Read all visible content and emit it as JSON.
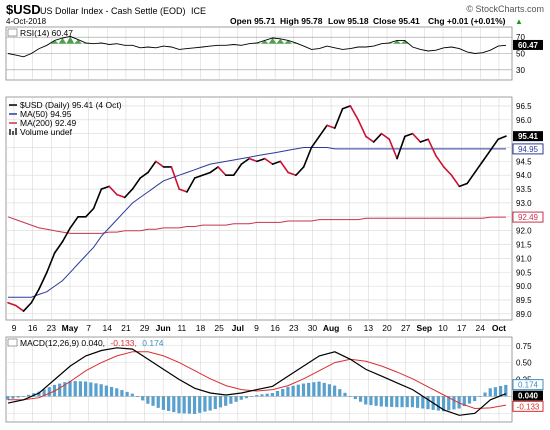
{
  "header": {
    "symbol": "$USD",
    "name": "US Dollar Index - Cash Settle (EOD)",
    "exchange": "ICE",
    "watermark": "© StockCharts.com",
    "date": "4-Oct-2018",
    "open": "Open 95.71",
    "high": "High 95.78",
    "low": "Low 95.18",
    "close": "Close 95.41",
    "chg": "Chg +0.01 (+0.01%)",
    "chg_arrow": "▲"
  },
  "colors": {
    "price": "#000000",
    "price_down": "#cc1133",
    "ma50": "#2a3a9a",
    "ma200": "#c8334f",
    "rsi": "#000000",
    "rsi_fill": "#2f8f2f",
    "macd": "#000000",
    "signal": "#d93030",
    "hist": "#3b8fc4",
    "grid": "#d8d8d8",
    "tag_price_bg": "#000000",
    "tag_ma50_bg": "#2a3a9a",
    "tag_ma200_bg": "#c8334f",
    "tag_rsi_bg": "#000000",
    "tag_macd_bg": "#000000",
    "tag_signal_bg": "#d93030"
  },
  "rsi_panel": {
    "label": "RSI(14) 60.47",
    "ticks": [
      "70",
      "60.47",
      "50",
      "30"
    ],
    "current_tag": "60.47"
  },
  "price_panel": {
    "legend": [
      {
        "text": "$USD (Daily) 95.41 (4 Oct)",
        "icon": "price-line-icon"
      },
      {
        "text": "MA(50) 94.95",
        "icon": "ma50-line-icon"
      },
      {
        "text": "MA(200) 92.49",
        "icon": "ma200-line-icon"
      },
      {
        "text": "Volume undef",
        "icon": "volume-bar-icon"
      }
    ],
    "ticks": [
      "96.5",
      "96.0",
      "95.5",
      "95.0",
      "94.5",
      "94.0",
      "93.5",
      "93.0",
      "92.5",
      "92.0",
      "91.5",
      "91.0",
      "90.5",
      "90.0",
      "89.5",
      "89.0"
    ],
    "tags": {
      "price": "95.41",
      "ma50": "94.95",
      "ma200": "92.49"
    }
  },
  "x_axis": {
    "labels": [
      {
        "text": "9",
        "bold": false
      },
      {
        "text": "16",
        "bold": false
      },
      {
        "text": "23",
        "bold": false
      },
      {
        "text": "May",
        "bold": true
      },
      {
        "text": "7",
        "bold": false
      },
      {
        "text": "14",
        "bold": false
      },
      {
        "text": "21",
        "bold": false
      },
      {
        "text": "29",
        "bold": false
      },
      {
        "text": "Jun",
        "bold": true
      },
      {
        "text": "11",
        "bold": false
      },
      {
        "text": "18",
        "bold": false
      },
      {
        "text": "25",
        "bold": false
      },
      {
        "text": "Jul",
        "bold": true
      },
      {
        "text": "9",
        "bold": false
      },
      {
        "text": "16",
        "bold": false
      },
      {
        "text": "23",
        "bold": false
      },
      {
        "text": "30",
        "bold": false
      },
      {
        "text": "Aug",
        "bold": true
      },
      {
        "text": "6",
        "bold": false
      },
      {
        "text": "13",
        "bold": false
      },
      {
        "text": "20",
        "bold": false
      },
      {
        "text": "27",
        "bold": false
      },
      {
        "text": "Sep",
        "bold": true
      },
      {
        "text": "10",
        "bold": false
      },
      {
        "text": "17",
        "bold": false
      },
      {
        "text": "24",
        "bold": false
      },
      {
        "text": "Oct",
        "bold": true
      }
    ]
  },
  "macd_panel": {
    "label_prefix": "MACD(12,26,9) 0.040,",
    "label_signal": "-0.133,",
    "label_hist": "0.174",
    "ticks": [
      "0.75",
      "0.50",
      "0.25",
      "0.00",
      "-0.25"
    ],
    "tags": {
      "hist": "0.174",
      "macd": "0.040",
      "signal": "-0.133"
    }
  },
  "chart_data": [
    {
      "type": "line",
      "title": "RSI(14)",
      "ylim": [
        20,
        80
      ],
      "reference_lines": [
        70,
        30
      ],
      "grid": true,
      "x": [
        0,
        2,
        4,
        6,
        8,
        10,
        12,
        14,
        16,
        18,
        20,
        22,
        24,
        26,
        28,
        30,
        32,
        34,
        36,
        38,
        40,
        42,
        44,
        46,
        48,
        50,
        52,
        54,
        56,
        58,
        60,
        62,
        64,
        66,
        68,
        70,
        72,
        74,
        76,
        78,
        80,
        82,
        84,
        86,
        88,
        90,
        92,
        94,
        96,
        98,
        100,
        102,
        104,
        106,
        108,
        110,
        112,
        114,
        116,
        118,
        120,
        122,
        124,
        126,
        128
      ],
      "series": [
        {
          "name": "RSI(14)",
          "values": [
            50,
            48,
            46,
            50,
            56,
            60,
            66,
            69,
            71,
            67,
            63,
            62,
            63,
            61,
            62,
            60,
            60,
            57,
            58,
            57,
            59,
            58,
            55,
            56,
            57,
            58,
            59,
            60,
            60,
            61,
            60,
            62,
            63,
            66,
            69,
            68,
            66,
            63,
            59,
            55,
            56,
            59,
            57,
            55,
            56,
            58,
            58,
            59,
            62,
            63,
            66,
            66,
            58,
            55,
            53,
            54,
            57,
            58,
            56,
            52,
            50,
            51,
            54,
            59,
            60
          ]
        }
      ]
    },
    {
      "type": "line",
      "title": "$USD (Daily)",
      "ylim": [
        89.0,
        96.7
      ],
      "grid": true,
      "x": [
        0,
        2,
        4,
        6,
        8,
        10,
        12,
        14,
        16,
        18,
        20,
        22,
        24,
        26,
        28,
        30,
        32,
        34,
        36,
        38,
        40,
        42,
        44,
        46,
        48,
        50,
        52,
        54,
        56,
        58,
        60,
        62,
        64,
        66,
        68,
        70,
        72,
        74,
        76,
        78,
        80,
        82,
        84,
        86,
        88,
        90,
        92,
        94,
        96,
        98,
        100,
        102,
        104,
        106,
        108,
        110,
        112,
        114,
        116,
        118,
        120,
        122,
        124,
        126,
        128
      ],
      "series": [
        {
          "name": "$USD (Daily) 95.41 (4 Oct)",
          "values": [
            89.4,
            89.3,
            89.1,
            89.4,
            89.9,
            90.5,
            91.2,
            91.6,
            92.1,
            92.5,
            92.5,
            92.8,
            93.5,
            93.6,
            93.3,
            93.2,
            93.5,
            93.9,
            94.1,
            94.5,
            94.3,
            94.3,
            93.5,
            93.4,
            93.9,
            94.0,
            94.1,
            94.3,
            94.0,
            94.0,
            94.4,
            94.6,
            94.5,
            94.6,
            94.4,
            94.5,
            94.1,
            94.0,
            94.3,
            95.0,
            95.4,
            95.8,
            95.7,
            96.4,
            96.5,
            96.0,
            95.4,
            95.2,
            95.5,
            95.3,
            94.6,
            95.4,
            95.5,
            95.2,
            95.3,
            94.7,
            94.3,
            94.0,
            93.6,
            93.7,
            94.1,
            94.5,
            94.9,
            95.3,
            95.41
          ]
        },
        {
          "name": "MA(50) 94.95",
          "values": [
            89.6,
            89.6,
            89.6,
            89.6,
            89.7,
            89.8,
            90.0,
            90.2,
            90.5,
            90.8,
            91.1,
            91.4,
            91.8,
            92.1,
            92.4,
            92.7,
            93.0,
            93.2,
            93.4,
            93.6,
            93.8,
            93.9,
            94.0,
            94.1,
            94.2,
            94.3,
            94.4,
            94.45,
            94.5,
            94.55,
            94.6,
            94.65,
            94.7,
            94.75,
            94.8,
            94.85,
            94.9,
            94.95,
            95.0,
            95.0,
            95.0,
            95.0,
            94.95,
            94.95,
            94.95,
            94.95,
            94.95,
            94.95,
            94.95,
            94.95,
            94.95,
            94.95,
            94.95,
            94.95,
            94.95,
            94.95,
            94.95,
            94.95,
            94.95,
            94.95,
            94.95,
            94.95,
            94.95,
            94.95,
            94.95
          ]
        },
        {
          "name": "MA(200) 92.49",
          "values": [
            92.5,
            92.4,
            92.3,
            92.2,
            92.1,
            92.05,
            92.0,
            91.95,
            91.9,
            91.9,
            91.9,
            91.9,
            91.9,
            91.95,
            91.95,
            92.0,
            92.0,
            92.0,
            92.05,
            92.05,
            92.1,
            92.1,
            92.1,
            92.15,
            92.15,
            92.2,
            92.2,
            92.2,
            92.2,
            92.25,
            92.25,
            92.25,
            92.3,
            92.3,
            92.3,
            92.3,
            92.35,
            92.35,
            92.35,
            92.35,
            92.4,
            92.4,
            92.4,
            92.4,
            92.4,
            92.4,
            92.45,
            92.45,
            92.45,
            92.45,
            92.45,
            92.45,
            92.45,
            92.45,
            92.45,
            92.45,
            92.45,
            92.45,
            92.45,
            92.45,
            92.45,
            92.45,
            92.49,
            92.49,
            92.49
          ]
        }
      ]
    },
    {
      "type": "line",
      "title": "MACD(12,26,9)",
      "ylim": [
        -0.35,
        0.85
      ],
      "grid": true,
      "x": [
        0,
        4,
        8,
        12,
        16,
        20,
        24,
        28,
        32,
        36,
        40,
        44,
        48,
        52,
        56,
        60,
        64,
        68,
        72,
        76,
        80,
        84,
        88,
        92,
        96,
        100,
        104,
        108,
        112,
        116,
        120,
        124,
        128
      ],
      "series": [
        {
          "name": "MACD",
          "values": [
            -0.1,
            -0.05,
            0.05,
            0.25,
            0.45,
            0.6,
            0.68,
            0.72,
            0.7,
            0.55,
            0.4,
            0.25,
            0.12,
            0.05,
            0.02,
            0.05,
            0.1,
            0.15,
            0.3,
            0.45,
            0.6,
            0.66,
            0.55,
            0.4,
            0.3,
            0.2,
            0.1,
            -0.05,
            -0.2,
            -0.28,
            -0.25,
            -0.05,
            0.04
          ]
        },
        {
          "name": "Signal",
          "values": [
            -0.05,
            -0.05,
            -0.02,
            0.08,
            0.22,
            0.38,
            0.5,
            0.6,
            0.66,
            0.66,
            0.6,
            0.5,
            0.38,
            0.26,
            0.16,
            0.1,
            0.08,
            0.1,
            0.16,
            0.26,
            0.38,
            0.5,
            0.55,
            0.52,
            0.45,
            0.36,
            0.26,
            0.14,
            0.02,
            -0.1,
            -0.18,
            -0.17,
            -0.13
          ]
        },
        {
          "name": "Histogram",
          "values": [
            -0.05,
            0.0,
            0.07,
            0.17,
            0.23,
            0.22,
            0.18,
            0.12,
            0.04,
            -0.11,
            -0.2,
            -0.25,
            -0.26,
            -0.21,
            -0.14,
            -0.05,
            0.02,
            0.05,
            0.14,
            0.19,
            0.22,
            0.16,
            0.0,
            -0.12,
            -0.15,
            -0.16,
            -0.16,
            -0.19,
            -0.22,
            -0.18,
            -0.07,
            0.12,
            0.17
          ]
        }
      ]
    }
  ]
}
